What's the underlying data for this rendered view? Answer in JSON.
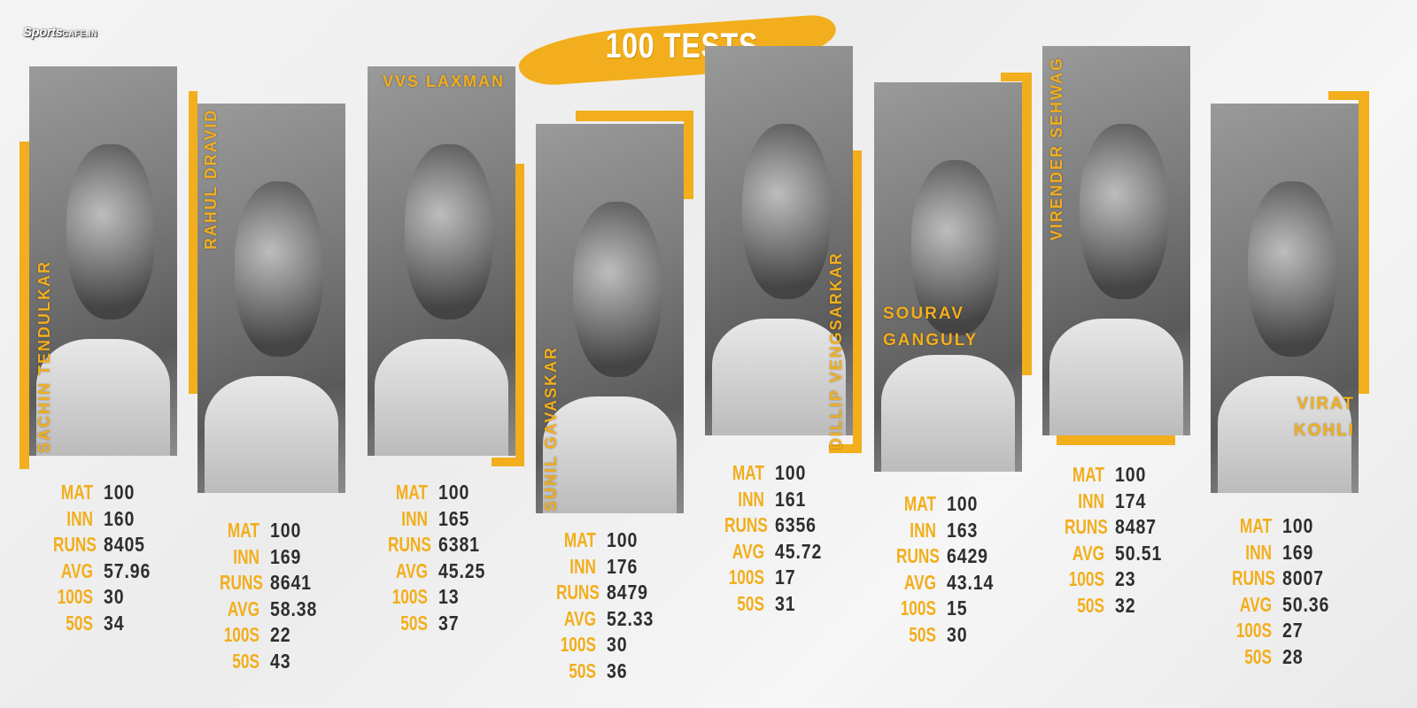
{
  "logo": {
    "brand": "Sports",
    "suffix": "CAFE.IN"
  },
  "title": "100 TESTS",
  "accent_color": "#f2ae1c",
  "stat_labels": [
    "MAT",
    "INN",
    "RUNS",
    "AVG",
    "100S",
    "50S"
  ],
  "players": [
    {
      "name": "SACHIN TENDULKAR",
      "stats": [
        "100",
        "160",
        "8405",
        "57.96",
        "30",
        "34"
      ]
    },
    {
      "name": "RAHUL DRAVID",
      "stats": [
        "100",
        "169",
        "8641",
        "58.38",
        "22",
        "43"
      ]
    },
    {
      "name": "VVS LAXMAN",
      "stats": [
        "100",
        "165",
        "6381",
        "45.25",
        "13",
        "37"
      ]
    },
    {
      "name": "SUNIL GAVASKAR",
      "stats": [
        "100",
        "176",
        "8479",
        "52.33",
        "30",
        "36"
      ]
    },
    {
      "name": "DILLIP VENGSARKAR",
      "stats": [
        "100",
        "161",
        "6356",
        "45.72",
        "17",
        "31"
      ]
    },
    {
      "name": "SOURAV GANGULY",
      "stats": [
        "100",
        "163",
        "6429",
        "43.14",
        "15",
        "30"
      ]
    },
    {
      "name": "VIRENDER SEHWAG",
      "stats": [
        "100",
        "174",
        "8487",
        "50.51",
        "23",
        "32"
      ]
    },
    {
      "name": "VIRAT KOHLI",
      "stats": [
        "100",
        "169",
        "8007",
        "50.36",
        "27",
        "28"
      ]
    }
  ]
}
